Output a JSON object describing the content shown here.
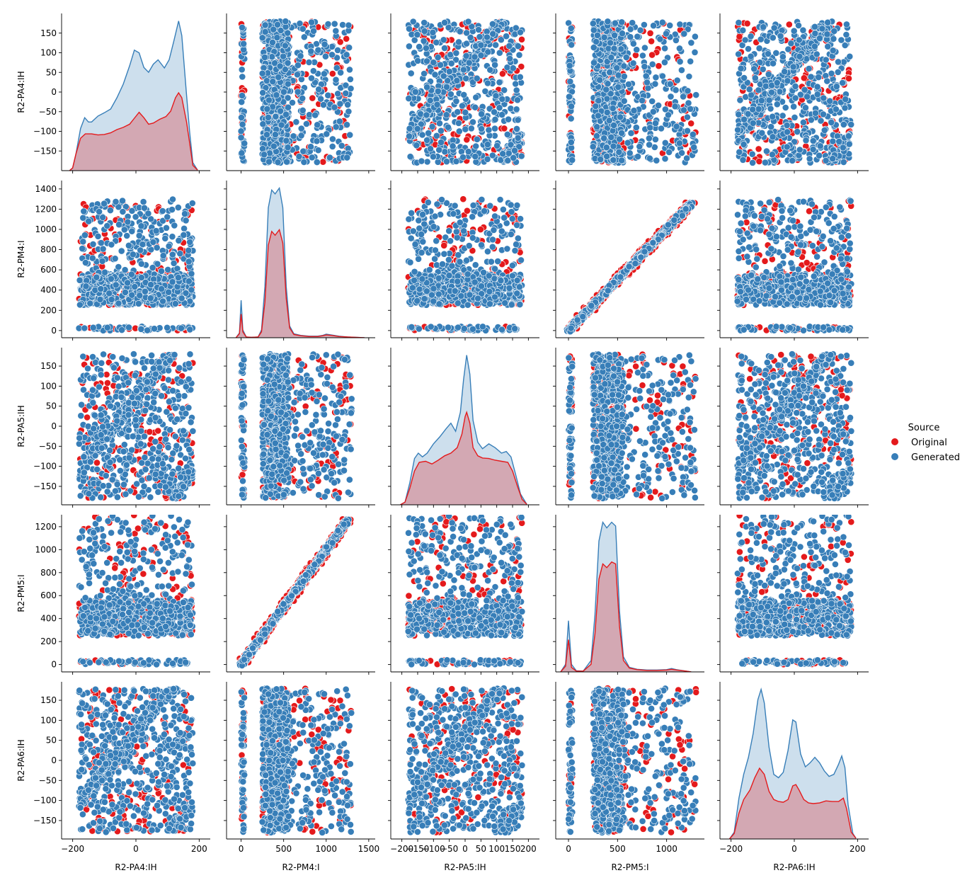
{
  "chart_data": {
    "type": "pairplot",
    "variables": [
      "R2-PA4:IH",
      "R2-PM4:I",
      "R2-PA5:IH",
      "R2-PM5:I",
      "R2-PA6:IH"
    ],
    "diagonal_kind": "kde",
    "offdiagonal_kind": "scatter",
    "legend": {
      "title": "Source",
      "placement": "right",
      "entries": [
        {
          "label": "Original",
          "color": "#e41a1c"
        },
        {
          "label": "Generated",
          "color": "#377eb8"
        }
      ]
    },
    "axes": {
      "R2-PA4:IH": {
        "range": [
          -235,
          235
        ],
        "ticks": [
          -200,
          0,
          200
        ],
        "y_ticks": [
          -150,
          -100,
          -50,
          0,
          50,
          100,
          150
        ],
        "y_range": [
          -200,
          200
        ]
      },
      "R2-PM4:I": {
        "range": [
          -171,
          1576
        ],
        "ticks": [
          0,
          500,
          1000,
          1500
        ],
        "y_ticks": [
          0,
          200,
          400,
          600,
          800,
          1000,
          1200,
          1400
        ],
        "y_range": [
          -71,
          1483
        ]
      },
      "R2-PA5:IH": {
        "range": [
          -235,
          235
        ],
        "ticks": [
          -200,
          -150,
          -100,
          -50,
          0,
          50,
          100,
          150,
          200
        ],
        "y_ticks": [
          -150,
          -100,
          -50,
          0,
          50,
          100,
          150
        ],
        "y_range": [
          -196,
          196
        ]
      },
      "R2-PM5:I": {
        "range": [
          -130,
          1385
        ],
        "ticks": [
          0,
          500,
          1000
        ],
        "y_ticks": [
          0,
          200,
          400,
          600,
          800,
          1000,
          1200
        ],
        "y_range": [
          -64,
          1304
        ]
      },
      "R2-PA6:IH": {
        "range": [
          -235,
          235
        ],
        "ticks": [
          -200,
          0,
          200
        ],
        "y_ticks": [
          -150,
          -100,
          -50,
          0,
          50,
          100,
          150
        ],
        "y_range": [
          -196,
          196
        ]
      }
    },
    "diagonals": [
      {
        "variable": "R2-PA4:IH",
        "original": [
          [
            -210,
            0
          ],
          [
            -200,
            0.05
          ],
          [
            -190,
            0.3
          ],
          [
            -175,
            0.6
          ],
          [
            -160,
            0.68
          ],
          [
            -140,
            0.68
          ],
          [
            -120,
            0.66
          ],
          [
            -100,
            0.67
          ],
          [
            -80,
            0.7
          ],
          [
            -60,
            0.76
          ],
          [
            -40,
            0.8
          ],
          [
            -20,
            0.86
          ],
          [
            -5,
            0.97
          ],
          [
            10,
            1.08
          ],
          [
            25,
            0.98
          ],
          [
            40,
            0.86
          ],
          [
            55,
            0.88
          ],
          [
            75,
            0.95
          ],
          [
            95,
            1.0
          ],
          [
            110,
            1.1
          ],
          [
            125,
            1.35
          ],
          [
            135,
            1.44
          ],
          [
            145,
            1.35
          ],
          [
            160,
            0.9
          ],
          [
            170,
            0.5
          ],
          [
            180,
            0.1
          ],
          [
            195,
            0.01
          ]
        ],
        "generated": [
          [
            -210,
            0
          ],
          [
            -200,
            0.05
          ],
          [
            -190,
            0.3
          ],
          [
            -175,
            0.78
          ],
          [
            -162,
            0.98
          ],
          [
            -150,
            0.9
          ],
          [
            -140,
            0.9
          ],
          [
            -120,
            1.01
          ],
          [
            -100,
            1.07
          ],
          [
            -80,
            1.14
          ],
          [
            -60,
            1.35
          ],
          [
            -40,
            1.6
          ],
          [
            -20,
            1.94
          ],
          [
            -5,
            2.23
          ],
          [
            10,
            2.18
          ],
          [
            25,
            1.91
          ],
          [
            40,
            1.82
          ],
          [
            55,
            1.97
          ],
          [
            70,
            2.05
          ],
          [
            90,
            1.9
          ],
          [
            105,
            2.05
          ],
          [
            120,
            2.4
          ],
          [
            135,
            2.77
          ],
          [
            145,
            2.5
          ],
          [
            160,
            1.4
          ],
          [
            170,
            0.7
          ],
          [
            180,
            0.15
          ],
          [
            195,
            0.01
          ]
        ]
      },
      {
        "variable": "R2-PM4:I",
        "original": [
          [
            -60,
            0
          ],
          [
            -20,
            0.1
          ],
          [
            0,
            0.6
          ],
          [
            20,
            0.15
          ],
          [
            60,
            0.02
          ],
          [
            120,
            0.01
          ],
          [
            200,
            0.02
          ],
          [
            240,
            0.15
          ],
          [
            280,
            0.9
          ],
          [
            320,
            2.35
          ],
          [
            360,
            2.7
          ],
          [
            400,
            2.6
          ],
          [
            450,
            2.74
          ],
          [
            490,
            2.4
          ],
          [
            530,
            1.0
          ],
          [
            570,
            0.25
          ],
          [
            620,
            0.08
          ],
          [
            700,
            0.05
          ],
          [
            800,
            0.03
          ],
          [
            900,
            0.03
          ],
          [
            960,
            0.05
          ],
          [
            1000,
            0.07
          ],
          [
            1060,
            0.06
          ],
          [
            1150,
            0.03
          ],
          [
            1250,
            0.02
          ],
          [
            1350,
            0.01
          ],
          [
            1450,
            0.0
          ]
        ],
        "generated": [
          [
            -60,
            0
          ],
          [
            -20,
            0.12
          ],
          [
            0,
            0.95
          ],
          [
            20,
            0.2
          ],
          [
            60,
            0.02
          ],
          [
            120,
            0.01
          ],
          [
            200,
            0.02
          ],
          [
            240,
            0.2
          ],
          [
            280,
            1.3
          ],
          [
            320,
            3.3
          ],
          [
            360,
            3.75
          ],
          [
            400,
            3.65
          ],
          [
            450,
            3.8
          ],
          [
            490,
            3.3
          ],
          [
            530,
            1.3
          ],
          [
            570,
            0.3
          ],
          [
            620,
            0.1
          ],
          [
            700,
            0.06
          ],
          [
            800,
            0.04
          ],
          [
            900,
            0.04
          ],
          [
            960,
            0.06
          ],
          [
            1000,
            0.09
          ],
          [
            1060,
            0.07
          ],
          [
            1150,
            0.04
          ],
          [
            1250,
            0.02
          ],
          [
            1350,
            0.01
          ],
          [
            1450,
            0.0
          ]
        ]
      },
      {
        "variable": "R2-PA5:IH",
        "original": [
          [
            -205,
            0
          ],
          [
            -190,
            0.05
          ],
          [
            -175,
            0.3
          ],
          [
            -160,
            0.62
          ],
          [
            -145,
            0.78
          ],
          [
            -125,
            0.8
          ],
          [
            -105,
            0.75
          ],
          [
            -85,
            0.82
          ],
          [
            -65,
            0.9
          ],
          [
            -45,
            0.95
          ],
          [
            -25,
            1.05
          ],
          [
            -10,
            1.3
          ],
          [
            0,
            1.62
          ],
          [
            5,
            1.7
          ],
          [
            15,
            1.5
          ],
          [
            25,
            1.05
          ],
          [
            40,
            0.9
          ],
          [
            55,
            0.86
          ],
          [
            75,
            0.85
          ],
          [
            95,
            0.82
          ],
          [
            115,
            0.8
          ],
          [
            135,
            0.78
          ],
          [
            150,
            0.62
          ],
          [
            165,
            0.35
          ],
          [
            180,
            0.1
          ],
          [
            195,
            0.01
          ]
        ],
        "generated": [
          [
            -205,
            0
          ],
          [
            -190,
            0.05
          ],
          [
            -175,
            0.4
          ],
          [
            -160,
            0.85
          ],
          [
            -148,
            0.95
          ],
          [
            -135,
            0.88
          ],
          [
            -120,
            0.95
          ],
          [
            -100,
            1.12
          ],
          [
            -80,
            1.25
          ],
          [
            -60,
            1.4
          ],
          [
            -45,
            1.5
          ],
          [
            -30,
            1.35
          ],
          [
            -15,
            1.7
          ],
          [
            -5,
            2.3
          ],
          [
            5,
            2.75
          ],
          [
            15,
            2.4
          ],
          [
            25,
            1.55
          ],
          [
            40,
            1.15
          ],
          [
            55,
            1.03
          ],
          [
            75,
            1.12
          ],
          [
            95,
            1.05
          ],
          [
            115,
            0.95
          ],
          [
            130,
            0.98
          ],
          [
            145,
            0.88
          ],
          [
            160,
            0.55
          ],
          [
            175,
            0.2
          ],
          [
            195,
            0.01
          ]
        ]
      },
      {
        "variable": "R2-PM5:I",
        "original": [
          [
            -80,
            0
          ],
          [
            -30,
            0.15
          ],
          [
            0,
            0.85
          ],
          [
            30,
            0.12
          ],
          [
            80,
            0.02
          ],
          [
            150,
            0.02
          ],
          [
            230,
            0.2
          ],
          [
            270,
            1.0
          ],
          [
            310,
            2.45
          ],
          [
            350,
            2.85
          ],
          [
            390,
            2.75
          ],
          [
            440,
            2.9
          ],
          [
            480,
            2.85
          ],
          [
            520,
            1.2
          ],
          [
            560,
            0.3
          ],
          [
            620,
            0.1
          ],
          [
            700,
            0.06
          ],
          [
            800,
            0.04
          ],
          [
            900,
            0.04
          ],
          [
            1000,
            0.05
          ],
          [
            1050,
            0.07
          ],
          [
            1100,
            0.05
          ],
          [
            1200,
            0.02
          ],
          [
            1250,
            0.0
          ]
        ],
        "generated": [
          [
            -80,
            0
          ],
          [
            -30,
            0.2
          ],
          [
            0,
            1.35
          ],
          [
            30,
            0.2
          ],
          [
            80,
            0.03
          ],
          [
            150,
            0.02
          ],
          [
            230,
            0.3
          ],
          [
            270,
            1.5
          ],
          [
            310,
            3.45
          ],
          [
            350,
            3.95
          ],
          [
            390,
            3.8
          ],
          [
            440,
            3.95
          ],
          [
            480,
            3.85
          ],
          [
            520,
            1.6
          ],
          [
            560,
            0.4
          ],
          [
            620,
            0.12
          ],
          [
            700,
            0.07
          ],
          [
            800,
            0.05
          ],
          [
            900,
            0.05
          ],
          [
            1000,
            0.06
          ],
          [
            1050,
            0.09
          ],
          [
            1100,
            0.06
          ],
          [
            1200,
            0.02
          ],
          [
            1250,
            0.0
          ]
        ]
      },
      {
        "variable": "R2-PA6:IH",
        "original": [
          [
            -205,
            0
          ],
          [
            -190,
            0.08
          ],
          [
            -175,
            0.38
          ],
          [
            -160,
            0.58
          ],
          [
            -140,
            0.72
          ],
          [
            -125,
            0.9
          ],
          [
            -110,
            1.04
          ],
          [
            -95,
            0.95
          ],
          [
            -80,
            0.7
          ],
          [
            -65,
            0.58
          ],
          [
            -50,
            0.55
          ],
          [
            -35,
            0.54
          ],
          [
            -20,
            0.58
          ],
          [
            -5,
            0.78
          ],
          [
            5,
            0.8
          ],
          [
            15,
            0.72
          ],
          [
            30,
            0.58
          ],
          [
            45,
            0.53
          ],
          [
            60,
            0.52
          ],
          [
            80,
            0.53
          ],
          [
            100,
            0.56
          ],
          [
            120,
            0.55
          ],
          [
            140,
            0.55
          ],
          [
            155,
            0.6
          ],
          [
            165,
            0.45
          ],
          [
            180,
            0.1
          ],
          [
            195,
            0.01
          ]
        ],
        "generated": [
          [
            -205,
            0
          ],
          [
            -190,
            0.1
          ],
          [
            -175,
            0.6
          ],
          [
            -160,
            0.95
          ],
          [
            -145,
            1.2
          ],
          [
            -130,
            1.55
          ],
          [
            -115,
            2.05
          ],
          [
            -105,
            2.2
          ],
          [
            -95,
            2.0
          ],
          [
            -80,
            1.35
          ],
          [
            -65,
            0.95
          ],
          [
            -50,
            0.9
          ],
          [
            -35,
            0.98
          ],
          [
            -20,
            1.3
          ],
          [
            -5,
            1.75
          ],
          [
            5,
            1.72
          ],
          [
            20,
            1.25
          ],
          [
            35,
            1.06
          ],
          [
            50,
            1.12
          ],
          [
            65,
            1.2
          ],
          [
            80,
            1.12
          ],
          [
            95,
            1.0
          ],
          [
            110,
            0.92
          ],
          [
            125,
            0.95
          ],
          [
            140,
            1.1
          ],
          [
            150,
            1.22
          ],
          [
            160,
            1.05
          ],
          [
            170,
            0.5
          ],
          [
            185,
            0.08
          ],
          [
            195,
            0.01
          ]
        ]
      }
    ]
  }
}
